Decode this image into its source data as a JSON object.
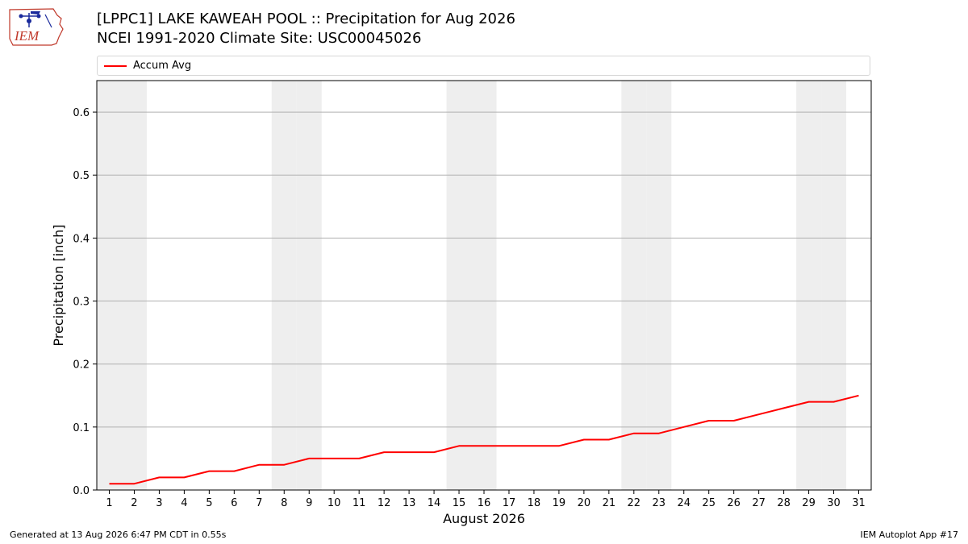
{
  "logo": {
    "text": "IEM"
  },
  "header": {
    "title": "[LPPC1] LAKE KAWEAH POOL :: Precipitation for Aug 2026",
    "subtitle": "NCEI 1991-2020 Climate Site: USC00045026"
  },
  "legend": {
    "label": "Accum Avg",
    "color": "#ff0000"
  },
  "chart_data": {
    "type": "line",
    "title": "[LPPC1] LAKE KAWEAH POOL :: Precipitation for Aug 2026",
    "subtitle": "NCEI 1991-2020 Climate Site: USC00045026",
    "xlabel": "August 2026",
    "ylabel": "Precipitation [inch]",
    "x": [
      1,
      2,
      3,
      4,
      5,
      6,
      7,
      8,
      9,
      10,
      11,
      12,
      13,
      14,
      15,
      16,
      17,
      18,
      19,
      20,
      21,
      22,
      23,
      24,
      25,
      26,
      27,
      28,
      29,
      30,
      31
    ],
    "xlim": [
      0.5,
      31.5
    ],
    "ylim": [
      0,
      0.65
    ],
    "yticks": [
      "0.0",
      "0.1",
      "0.2",
      "0.3",
      "0.4",
      "0.5",
      "0.6"
    ],
    "grid": "horizontal",
    "legend_position": "top",
    "weekend_shaded_days": [
      1,
      2,
      8,
      9,
      15,
      16,
      22,
      23,
      29,
      30
    ],
    "weekend_color": "#eeeeee",
    "series": [
      {
        "name": "Accum Avg",
        "color": "#ff0000",
        "values": [
          0.01,
          0.01,
          0.02,
          0.02,
          0.03,
          0.03,
          0.04,
          0.04,
          0.05,
          0.05,
          0.05,
          0.06,
          0.06,
          0.06,
          0.07,
          0.07,
          0.07,
          0.07,
          0.07,
          0.08,
          0.08,
          0.09,
          0.09,
          0.1,
          0.11,
          0.11,
          0.12,
          0.13,
          0.14,
          0.14,
          0.15
        ]
      }
    ]
  },
  "footer": {
    "left": "Generated at 13 Aug 2026 6:47 PM CDT in 0.55s",
    "right": "IEM Autoplot App #17"
  }
}
